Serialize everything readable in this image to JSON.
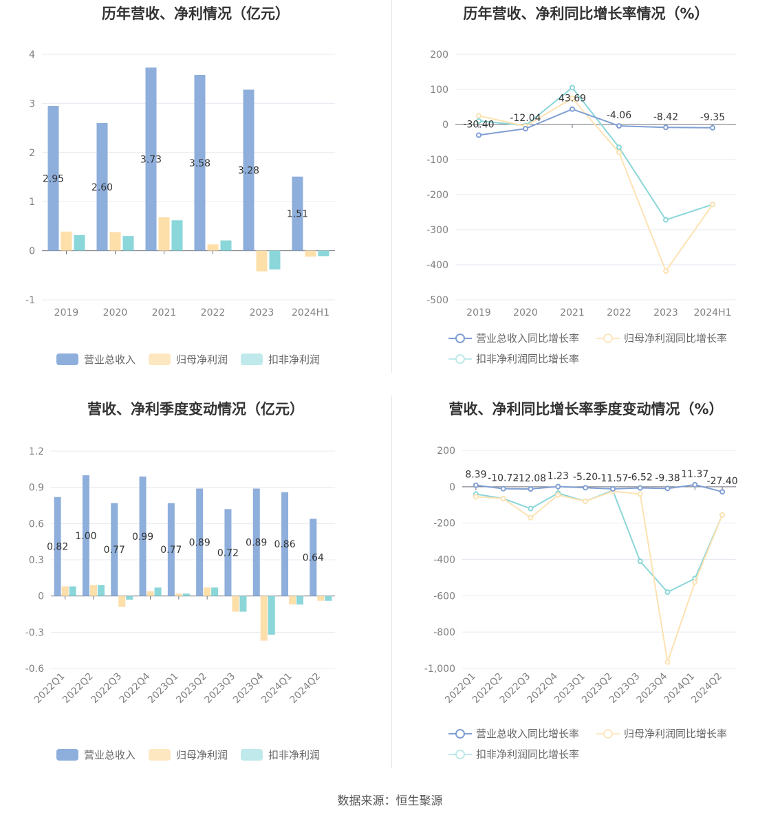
{
  "source": "数据来源：恒生聚源",
  "colors": {
    "revenue": "#8eaedb",
    "net": "#fddfaa",
    "deducted": "#8ad6d8"
  },
  "charts": [
    {
      "title": "历年营收、净利情况（亿元）",
      "chart_data": {
        "type": "bar",
        "categories": [
          "2019",
          "2020",
          "2021",
          "2022",
          "2023",
          "2024H1"
        ],
        "ylim": [
          -1,
          4
        ],
        "yticks": [
          "4",
          "3",
          "2",
          "1",
          "0",
          "-1"
        ],
        "series": [
          {
            "name": "营业总收入",
            "values": [
              2.95,
              2.6,
              3.73,
              3.58,
              3.28,
              1.51
            ],
            "labels": [
              "2.95",
              "2.60",
              "3.73",
              "3.58",
              "3.28",
              "1.51"
            ]
          },
          {
            "name": "归母净利润",
            "values": [
              0.39,
              0.38,
              0.68,
              0.13,
              -0.42,
              -0.12
            ]
          },
          {
            "name": "扣非净利润",
            "values": [
              0.32,
              0.3,
              0.62,
              0.21,
              -0.38,
              -0.11
            ]
          }
        ]
      }
    },
    {
      "title": "历年营收、净利同比增长率情况（%）",
      "chart_data": {
        "type": "line",
        "categories": [
          "2019",
          "2020",
          "2021",
          "2022",
          "2023",
          "2024H1"
        ],
        "ylim": [
          -500,
          200
        ],
        "yticks": [
          "200",
          "100",
          "0",
          "-100",
          "-200",
          "-300",
          "-400",
          "-500"
        ],
        "series": [
          {
            "name": "营业总收入同比增长率",
            "values": [
              -30.4,
              -12.04,
              43.69,
              -4.06,
              -8.42,
              -9.35
            ],
            "labels": [
              "-30.40",
              "-12.04",
              "43.69",
              "-4.06",
              "-8.42",
              "-9.35"
            ]
          },
          {
            "name": "归母净利润同比增长率",
            "values": [
              25,
              -5,
              75,
              -80,
              -418,
              -228
            ]
          },
          {
            "name": "扣非净利润同比增长率",
            "values": [
              10,
              -3,
              105,
              -65,
              -272,
              -228
            ]
          }
        ]
      }
    },
    {
      "title": "营收、净利季度变动情况（亿元）",
      "chart_data": {
        "type": "bar",
        "categories": [
          "2022Q1",
          "2022Q2",
          "2022Q3",
          "2022Q4",
          "2023Q1",
          "2023Q2",
          "2023Q3",
          "2023Q4",
          "2024Q1",
          "2024Q2"
        ],
        "ylim": [
          -0.6,
          1.2
        ],
        "yticks": [
          "1.2",
          "0.9",
          "0.6",
          "0.3",
          "0",
          "-0.3",
          "-0.6"
        ],
        "series": [
          {
            "name": "营业总收入",
            "values": [
              0.82,
              1.0,
              0.77,
              0.99,
              0.77,
              0.89,
              0.72,
              0.89,
              0.86,
              0.64
            ],
            "labels": [
              "0.82",
              "1.00",
              "0.77",
              "0.99",
              "0.77",
              "0.89",
              "0.72",
              "0.89",
              "0.86",
              "0.64"
            ]
          },
          {
            "name": "归母净利润",
            "values": [
              0.08,
              0.09,
              -0.09,
              0.04,
              0.02,
              0.07,
              -0.13,
              -0.37,
              -0.07,
              -0.04
            ]
          },
          {
            "name": "扣非净利润",
            "values": [
              0.08,
              0.09,
              -0.03,
              0.07,
              0.02,
              0.07,
              -0.13,
              -0.32,
              -0.07,
              -0.04
            ]
          }
        ]
      }
    },
    {
      "title": "营收、净利同比增长率季度变动情况（%）",
      "chart_data": {
        "type": "line",
        "categories": [
          "2022Q1",
          "2022Q2",
          "2022Q3",
          "2022Q4",
          "2023Q1",
          "2023Q2",
          "2023Q3",
          "2023Q4",
          "2024Q1",
          "2024Q2"
        ],
        "ylim": [
          -1000,
          200
        ],
        "yticks": [
          "200",
          "0",
          "-200",
          "-400",
          "-600",
          "-800",
          "-1,000"
        ],
        "series": [
          {
            "name": "营业总收入同比增长率",
            "values": [
              8.39,
              -10.72,
              -12.08,
              1.23,
              -5.2,
              -11.57,
              -6.52,
              -9.38,
              11.37,
              -27.4
            ],
            "labels": [
              "8.39",
              "-10.72",
              "-12.08",
              "1.23",
              "-5.20",
              "-11.57",
              "-6.52",
              "-9.38",
              "11.37",
              "-27.40"
            ]
          },
          {
            "name": "归母净利润同比增长率",
            "values": [
              -55,
              -65,
              -170,
              -45,
              -80,
              -25,
              -40,
              -965,
              -525,
              -155
            ]
          },
          {
            "name": "扣非净利润同比增长率",
            "values": [
              -40,
              -65,
              -120,
              -35,
              -80,
              -20,
              -410,
              -580,
              -505,
              -155
            ]
          }
        ]
      }
    }
  ]
}
